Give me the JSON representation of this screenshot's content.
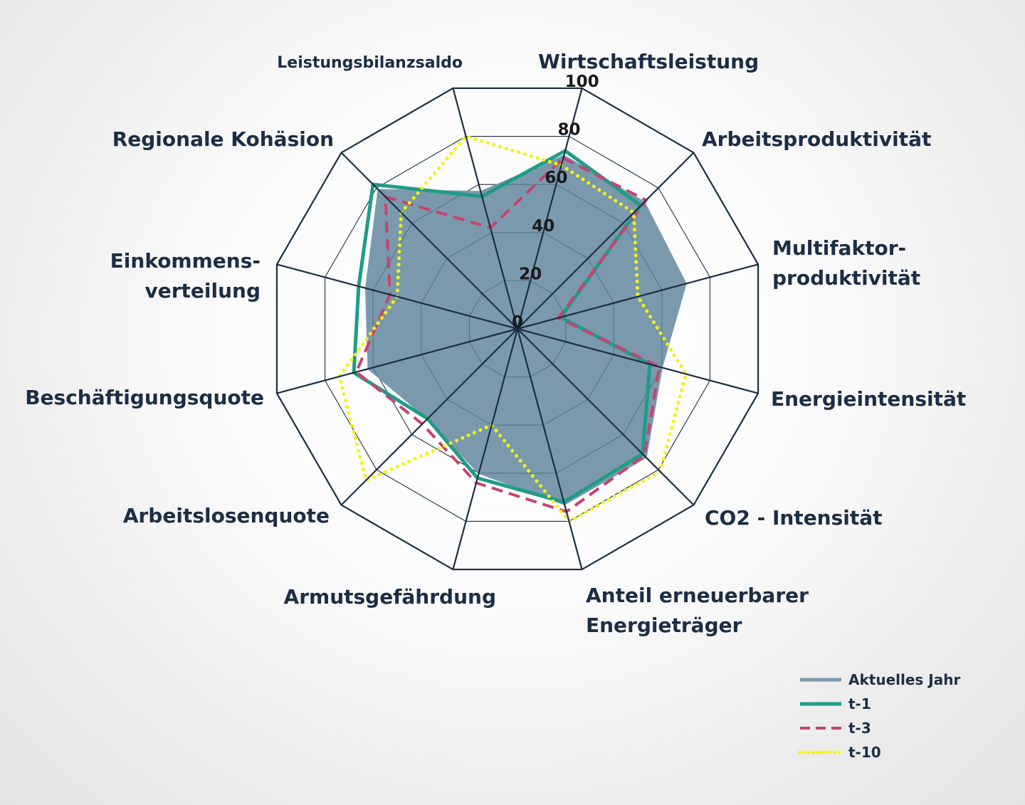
{
  "chart_data": {
    "type": "radar",
    "title": "",
    "axes": [
      "Wirtschaftsleistung",
      "Arbeitsproduktivität",
      "Multifaktor-produktivität",
      "Energieintensität",
      "CO2 - Intensität",
      "Anteil erneuerbarer Energieträger",
      "Armutsgefährdung",
      "Arbeitslosenquote",
      "Beschäftigungsquote",
      "Einkommens-verteilung",
      "Regionale Kohäsion",
      "Leistungsbilanzsaldo"
    ],
    "axis_label_lines": [
      [
        "Wirtschaftsleistung"
      ],
      [
        "Arbeitsproduktivität"
      ],
      [
        "Multifaktor-",
        "produktivität"
      ],
      [
        "Energieintensität"
      ],
      [
        "CO2 - Intensität"
      ],
      [
        "Anteil erneuerbarer",
        "Energieträger"
      ],
      [
        "Armutsgefährdung"
      ],
      [
        "Arbeitslosenquote"
      ],
      [
        "Beschäftigungsquote"
      ],
      [
        "Einkommens-",
        "verteilung"
      ],
      [
        "Regionale Kohäsion"
      ],
      [
        "Leistungsbilanzsaldo"
      ]
    ],
    "ticks": [
      0,
      20,
      40,
      60,
      80,
      100
    ],
    "ylim": [
      0,
      100
    ],
    "series": [
      {
        "name": "Aktuelles Jahr",
        "style": "filled",
        "color": "#7a9aae",
        "values": [
          72,
          72,
          70,
          60,
          73,
          73,
          60,
          51,
          62,
          63,
          79,
          57
        ]
      },
      {
        "name": "t-1",
        "style": "solid",
        "color": "#1f9c87",
        "values": [
          74,
          70,
          18,
          55,
          71,
          72,
          62,
          51,
          68,
          66,
          82,
          55
        ]
      },
      {
        "name": "t-3",
        "style": "dashed",
        "color": "#c7436f",
        "values": [
          71,
          73,
          17,
          59,
          72,
          76,
          64,
          54,
          67,
          53,
          75,
          42
        ]
      },
      {
        "name": "t-10",
        "style": "dotted",
        "color": "#f4f40e",
        "values": [
          68,
          66,
          50,
          70,
          81,
          80,
          40,
          86,
          74,
          50,
          66,
          80
        ]
      }
    ]
  }
}
